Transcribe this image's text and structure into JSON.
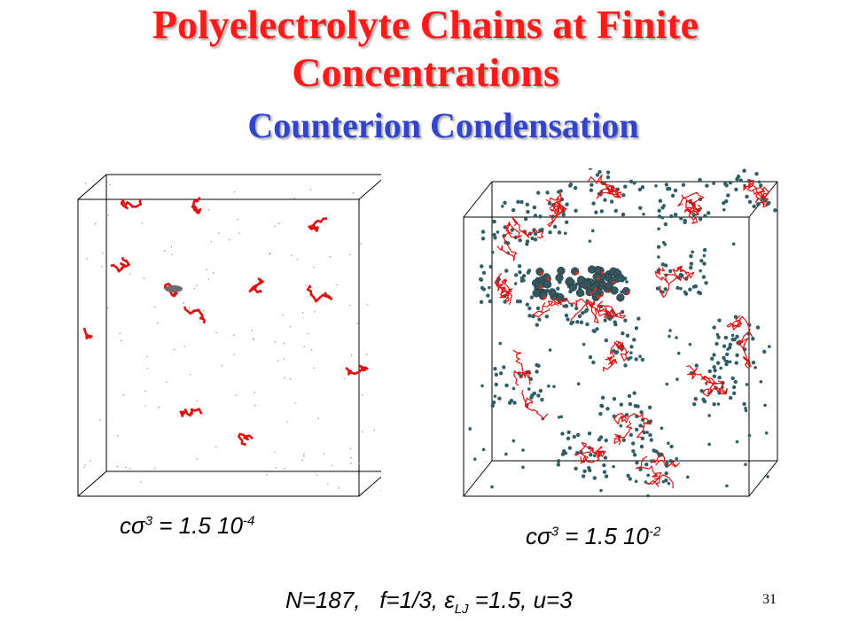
{
  "title": {
    "line1": "Polyelectrolyte Chains at Finite",
    "line2": "Concentrations"
  },
  "subtitle": "Counterion Condensation",
  "captions": {
    "left": {
      "c": "c",
      "sigma": "σ",
      "power": "3",
      "equals_value": " = 1.5 10",
      "exponent": "-4"
    },
    "right": {
      "c": "c",
      "sigma": "σ",
      "power": "3",
      "equals_value": " = 1.5 10",
      "exponent": "-2"
    }
  },
  "parameters": {
    "n_part": "N=187,",
    "f_part": "f=1/3,",
    "epsilon_symbol": "ε",
    "epsilon_subscript": "LJ",
    "epsilon_value": " =1.5,",
    "u_part": "u=3"
  },
  "slide_number": "31",
  "colors": {
    "title": "#ff1a1a",
    "subtitle": "#3344cc",
    "polymer": "#e31010",
    "counterion": "#2f5f66"
  }
}
